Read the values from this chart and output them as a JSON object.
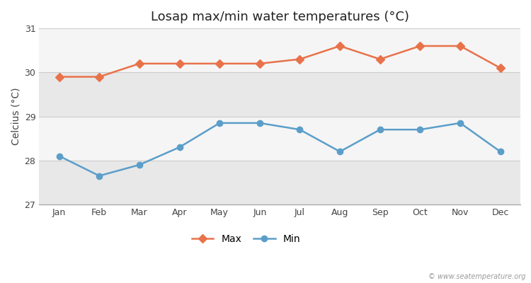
{
  "title": "Losap max/min water temperatures (°C)",
  "ylabel": "Celcius (°C)",
  "months": [
    "Jan",
    "Feb",
    "Mar",
    "Apr",
    "May",
    "Jun",
    "Jul",
    "Aug",
    "Sep",
    "Oct",
    "Nov",
    "Dec"
  ],
  "max_temps": [
    29.9,
    29.9,
    30.2,
    30.2,
    30.2,
    30.2,
    30.3,
    30.6,
    30.3,
    30.6,
    30.6,
    30.1
  ],
  "min_temps": [
    28.1,
    27.65,
    27.9,
    28.3,
    28.85,
    28.85,
    28.7,
    28.2,
    28.7,
    28.7,
    28.85,
    28.2
  ],
  "max_color": "#e8724a",
  "min_color": "#5b9ec9",
  "bg_color_fig": "#ffffff",
  "bg_color_plot": "#ffffff",
  "band_grey": "#e8e8e8",
  "band_white": "#f5f5f5",
  "ylim": [
    27,
    31
  ],
  "yticks": [
    27,
    28,
    29,
    30,
    31
  ],
  "watermark": "© www.seatemperature.org",
  "title_fontsize": 13,
  "label_fontsize": 10,
  "tick_fontsize": 9,
  "legend_label_max": "Max",
  "legend_label_min": "Min"
}
